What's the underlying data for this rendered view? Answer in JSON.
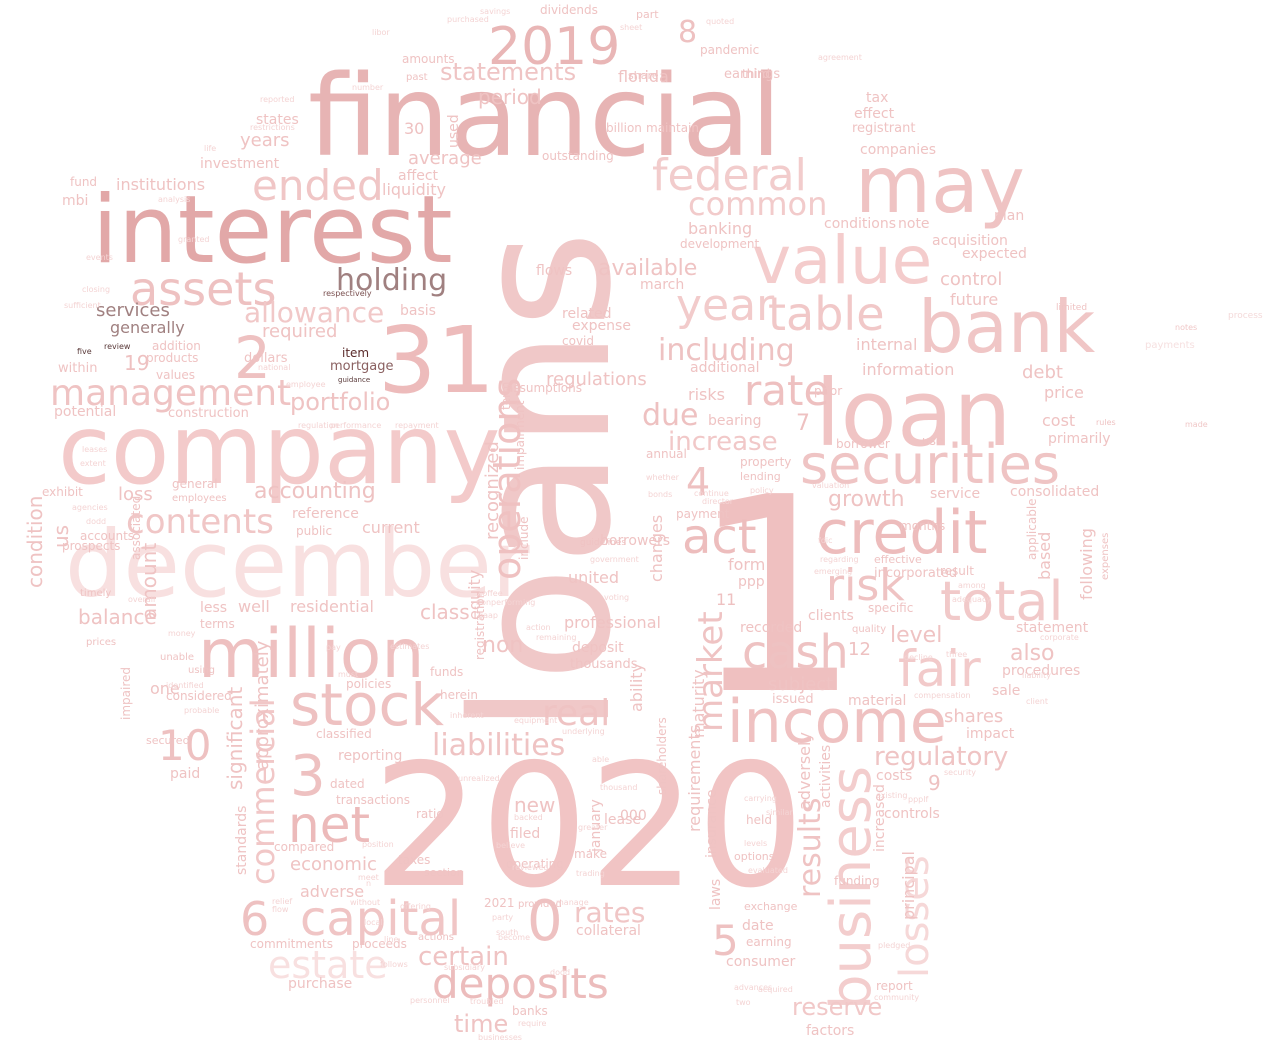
{
  "words": [
    {
      "text": "loans",
      "color": "#f0c8c8",
      "weight": 1.0
    },
    {
      "text": "2020",
      "color": "#f1c4c4",
      "weight": 0.97
    },
    {
      "text": "1",
      "color": "#efc0c0",
      "weight": 0.95
    },
    {
      "text": "financial",
      "color": "#e7b4b4",
      "weight": 0.9
    },
    {
      "text": "company",
      "color": "#f3caca",
      "weight": 0.88
    },
    {
      "text": "interest",
      "color": "#e2a8a8",
      "weight": 0.88
    },
    {
      "text": "december",
      "color": "#f8e0e0",
      "weight": 0.85
    },
    {
      "text": "loan",
      "color": "#f0c4c4",
      "weight": 0.8
    },
    {
      "text": "31",
      "color": "#edbbbb",
      "weight": 0.8
    },
    {
      "text": "may",
      "color": "#efc3c3",
      "weight": 0.7
    },
    {
      "text": "bank",
      "color": "#f0c6c6",
      "weight": 0.7
    },
    {
      "text": "million",
      "color": "#eec0c0",
      "weight": 0.68
    },
    {
      "text": "value",
      "color": "#f4cccc",
      "weight": 0.65
    },
    {
      "text": "income",
      "color": "#efc1c1",
      "weight": 0.6
    },
    {
      "text": "credit",
      "color": "#edbcbc",
      "weight": 0.6
    },
    {
      "text": "securities",
      "color": "#efc4c4",
      "weight": 0.55
    },
    {
      "text": "stock",
      "color": "#eec1c1",
      "weight": 0.55
    },
    {
      "text": "2019",
      "color": "#e9b6b6",
      "weight": 0.5
    },
    {
      "text": "business",
      "color": "#f3cdcd",
      "weight": 0.5
    },
    {
      "text": "total",
      "color": "#f1c9c9",
      "weight": 0.5
    },
    {
      "text": "fair",
      "color": "#f2caca",
      "weight": 0.48
    },
    {
      "text": "capital",
      "color": "#f0c5c5",
      "weight": 0.48
    },
    {
      "text": "assets",
      "color": "#eec1c1",
      "weight": 0.47
    },
    {
      "text": "net",
      "color": "#ecbaba",
      "weight": 0.46
    },
    {
      "text": "table",
      "color": "#f1c8c8",
      "weight": 0.45
    },
    {
      "text": "deposits",
      "color": "#ecbcbc",
      "weight": 0.45
    },
    {
      "text": "federal",
      "color": "#f2cccc",
      "weight": 0.44
    },
    {
      "text": "cash",
      "color": "#eec2c2",
      "weight": 0.44
    },
    {
      "text": "management",
      "color": "#efc3c3",
      "weight": 0.42
    },
    {
      "text": "year",
      "color": "#f2cbcb",
      "weight": 0.42
    },
    {
      "text": "operations",
      "color": "#efc1c1",
      "weight": 0.42
    },
    {
      "text": "act",
      "color": "#edbdbd",
      "weight": 0.42
    },
    {
      "text": "risk",
      "color": "#efc3c3",
      "weight": 0.42
    },
    {
      "text": "ended",
      "color": "#f0c6c6",
      "weight": 0.4
    },
    {
      "text": "holding",
      "color": "#a08080",
      "weight": 0.35
    },
    {
      "text": "rate",
      "color": "#eec0c0",
      "weight": 0.4
    },
    {
      "text": "contents",
      "color": "#f0c6c6",
      "weight": 0.38
    },
    {
      "text": "estate",
      "color": "#f8e0e0",
      "weight": 0.38
    },
    {
      "text": "liabilities",
      "color": "#efc3c3",
      "weight": 0.36
    },
    {
      "text": "real",
      "color": "#efc3c3",
      "weight": 0.36
    },
    {
      "text": "losses",
      "color": "#f6d8d8",
      "weight": 0.36
    },
    {
      "text": "market",
      "color": "#efc3c3",
      "weight": 0.36
    },
    {
      "text": "commercial",
      "color": "#f1c7c7",
      "weight": 0.34
    },
    {
      "text": "allowance",
      "color": "#f1c8c8",
      "weight": 0.34
    },
    {
      "text": "common",
      "color": "#f2cbcb",
      "weight": 0.34
    },
    {
      "text": "including",
      "color": "#eec2c2",
      "weight": 0.34
    },
    {
      "text": "regulatory",
      "color": "#efc4c4",
      "weight": 0.3
    },
    {
      "text": "portfolio",
      "color": "#efc3c3",
      "weight": 0.3
    },
    {
      "text": "statements",
      "color": "#efc4c4",
      "weight": 0.3
    },
    {
      "text": "due",
      "color": "#eec1c1",
      "weight": 0.3
    },
    {
      "text": "increase",
      "color": "#f1c8c8",
      "weight": 0.3
    },
    {
      "text": "results",
      "color": "#efc3c3",
      "weight": 0.3
    },
    {
      "text": "accounting",
      "color": "#eec2c2",
      "weight": 0.28
    },
    {
      "text": "rates",
      "color": "#f0c6c6",
      "weight": 0.3
    },
    {
      "text": "certain",
      "color": "#efc3c3",
      "weight": 0.3
    },
    {
      "text": "time",
      "color": "#efc3c3",
      "weight": 0.3
    },
    {
      "text": "reserve",
      "color": "#f1c8c8",
      "weight": 0.3
    },
    {
      "text": "services",
      "color": "#a08080",
      "weight": 0.25
    },
    {
      "text": "generally",
      "color": "#a08080",
      "weight": 0.24
    },
    {
      "text": "item",
      "color": "#5a2a2a",
      "weight": 0.2
    },
    {
      "text": "mortgage",
      "color": "#8a6060",
      "weight": 0.2
    },
    {
      "text": "review",
      "color": "#5a3a3a",
      "weight": 0.1
    },
    {
      "text": "five",
      "color": "#5a3a3a",
      "weight": 0.1
    },
    {
      "text": "guidance",
      "color": "#5a3a3a",
      "weight": 0.1
    },
    {
      "text": "respectively",
      "color": "#7a5050",
      "weight": 0.1
    },
    {
      "text": "process",
      "color": "#f4dada",
      "weight": 0.1
    },
    {
      "text": "payments",
      "color": "#f6e0e0",
      "weight": 0.1
    },
    {
      "text": "notes",
      "color": "#f0c8c8",
      "weight": 0.1
    },
    {
      "text": "made",
      "color": "#f0c8c8",
      "weight": 0.1
    }
  ]
}
